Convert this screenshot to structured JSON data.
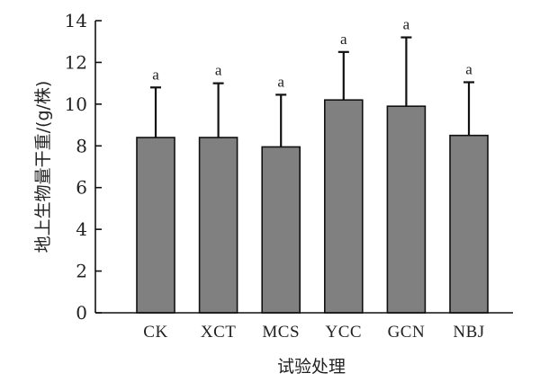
{
  "chart_data": {
    "type": "bar",
    "title": "",
    "xlabel": "试验处理",
    "ylabel": "地上生物量干重/(g/株)",
    "categories": [
      "CK",
      "XCT",
      "MCS",
      "YCC",
      "GCN",
      "NBJ"
    ],
    "values": [
      8.4,
      8.4,
      7.95,
      10.2,
      9.9,
      8.5
    ],
    "error_upper": [
      10.8,
      11.0,
      10.45,
      12.5,
      13.2,
      11.05
    ],
    "significance": [
      "a",
      "a",
      "a",
      "a",
      "a",
      "a"
    ],
    "ylim": [
      0,
      14
    ],
    "yticks": [
      0,
      2,
      4,
      6,
      8,
      10,
      12,
      14
    ],
    "grid": false,
    "legend": "none",
    "bar_color": "#808080"
  }
}
